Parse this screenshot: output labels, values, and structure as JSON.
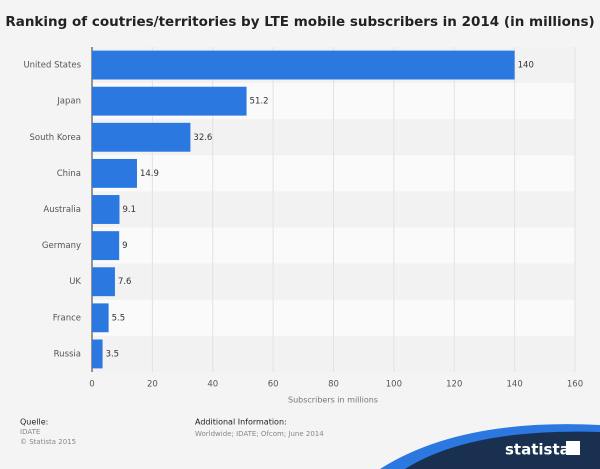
{
  "chart_data": {
    "type": "bar",
    "orientation": "horizontal",
    "title": "Ranking of coutries/territories by LTE mobile subscribers in 2014 (in millions)",
    "categories": [
      "United States",
      "Japan",
      "South Korea",
      "China",
      "Australia",
      "Germany",
      "UK",
      "France",
      "Russia"
    ],
    "values": [
      140,
      51.2,
      32.6,
      14.9,
      9.1,
      9,
      7.6,
      5.5,
      3.5
    ],
    "color": "#2a78e0",
    "xlabel": "Subscribers in millions",
    "xlim": [
      0,
      160
    ],
    "xticks": [
      0,
      20,
      40,
      60,
      80,
      100,
      120,
      140,
      160
    ],
    "grid": true
  },
  "footer": {
    "source_title": "Quelle:",
    "source": "IDATE",
    "copyright": "© Statista 2015",
    "info_title": "Additional Information:",
    "info": "Worldwide; IDATE; Ofcom; June 2014",
    "logo": "statista"
  }
}
